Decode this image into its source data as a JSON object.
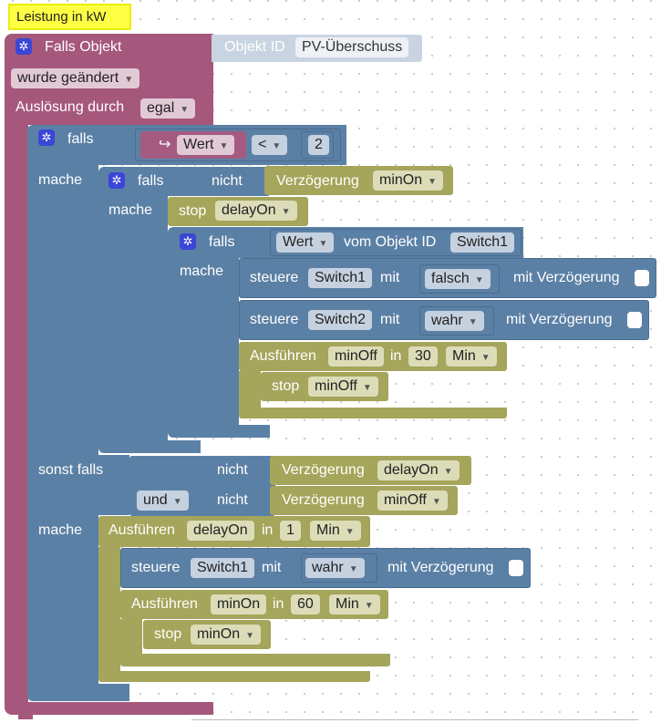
{
  "comment": "Leistung in kW",
  "event": {
    "title": "Falls Objekt",
    "object_label": "Objekt ID",
    "object_value": "PV-Überschuss",
    "changed_dropdown": "wurde geändert",
    "trigger_label": "Auslösung durch",
    "trigger_value": "egal"
  },
  "if1": {
    "falls": "falls",
    "wert": "Wert",
    "wert_icon": "↪",
    "op": "<",
    "num": "2",
    "mache": "mache"
  },
  "if2": {
    "falls": "falls",
    "nicht": "nicht",
    "verz": "Verzögerung",
    "verz_val": "minOn",
    "mache": "mache"
  },
  "stop1": {
    "label": "stop",
    "value": "delayOn"
  },
  "if3": {
    "falls": "falls",
    "wert": "Wert",
    "vom": "vom Objekt ID",
    "obj": "Switch1",
    "mache": "mache"
  },
  "ctrl1": {
    "steuere": "steuere",
    "obj": "Switch1",
    "mit": "mit",
    "val": "falsch",
    "delay": "mit Verzögerung"
  },
  "ctrl2": {
    "steuere": "steuere",
    "obj": "Switch2",
    "mit": "mit",
    "val": "wahr",
    "delay": "mit Verzögerung"
  },
  "exec1": {
    "label": "Ausführen",
    "name": "minOff",
    "in": "in",
    "num": "30",
    "unit": "Min"
  },
  "stop2": {
    "label": "stop",
    "value": "minOff"
  },
  "elseif": {
    "label": "sonst falls",
    "nicht1": "nicht",
    "verz1": "Verzögerung",
    "verz1_val": "delayOn",
    "und": "und",
    "nicht2": "nicht",
    "verz2": "Verzögerung",
    "verz2_val": "minOff",
    "mache": "mache"
  },
  "exec2": {
    "label": "Ausführen",
    "name": "delayOn",
    "in": "in",
    "num": "1",
    "unit": "Min"
  },
  "ctrl3": {
    "steuere": "steuere",
    "obj": "Switch1",
    "mit": "mit",
    "val": "wahr",
    "delay": "mit Verzögerung"
  },
  "exec3": {
    "label": "Ausführen",
    "name": "minOn",
    "in": "in",
    "num": "60",
    "unit": "Min"
  },
  "stop3": {
    "label": "stop",
    "value": "minOn"
  },
  "icons": {
    "gear": "gear-icon",
    "dropdown": "dropdown-arrow-icon"
  },
  "colors": {
    "event": "#a5577c",
    "logic": "#5b80a5",
    "timer": "#a5a55b",
    "comment": "#ffff44"
  }
}
